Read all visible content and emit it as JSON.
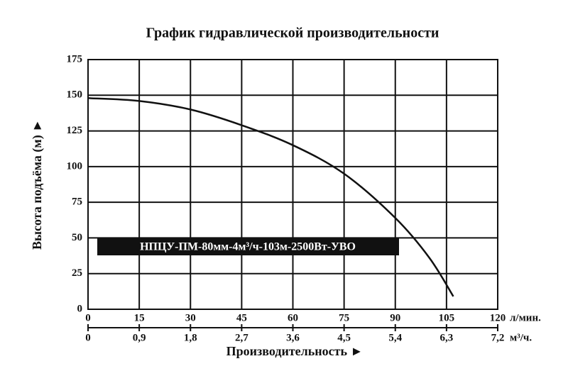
{
  "chart_data": {
    "type": "line",
    "title": "График гидравлической производительности",
    "y_label": "Высота подъёма (м) ►",
    "x_label": "Производительность ►",
    "x_unit": "л/мин.",
    "x2_unit": "м³/ч.",
    "x": [
      0,
      15,
      30,
      45,
      60,
      75,
      90,
      100,
      107
    ],
    "series": [
      {
        "name": "НПЦУ-ПМ-80мм-4м³/ч-103м-2500Вт-УВО",
        "color": "#111111",
        "values": [
          148,
          146,
          140,
          129,
          115,
          95,
          64,
          36,
          9
        ]
      }
    ],
    "xlim": [
      0,
      120
    ],
    "xticks": [
      0,
      15,
      30,
      45,
      60,
      75,
      90,
      105,
      120
    ],
    "x2lim": [
      0,
      7.2
    ],
    "x2ticks": [
      0,
      {
        "value": 0.9,
        "label": "0,9"
      },
      {
        "value": 1.8,
        "label": "1,8"
      },
      {
        "value": 2.7,
        "label": "2,7"
      },
      {
        "value": 3.6,
        "label": "3,6"
      },
      {
        "value": 4.5,
        "label": "4,5"
      },
      {
        "value": 5.4,
        "label": "5,4"
      },
      {
        "value": 6.3,
        "label": "6,3"
      },
      {
        "value": 7.2,
        "label": "7,2"
      }
    ],
    "ylim": [
      0,
      175
    ],
    "yticks": [
      0,
      25,
      50,
      75,
      100,
      125,
      150,
      175
    ],
    "grid": true
  }
}
